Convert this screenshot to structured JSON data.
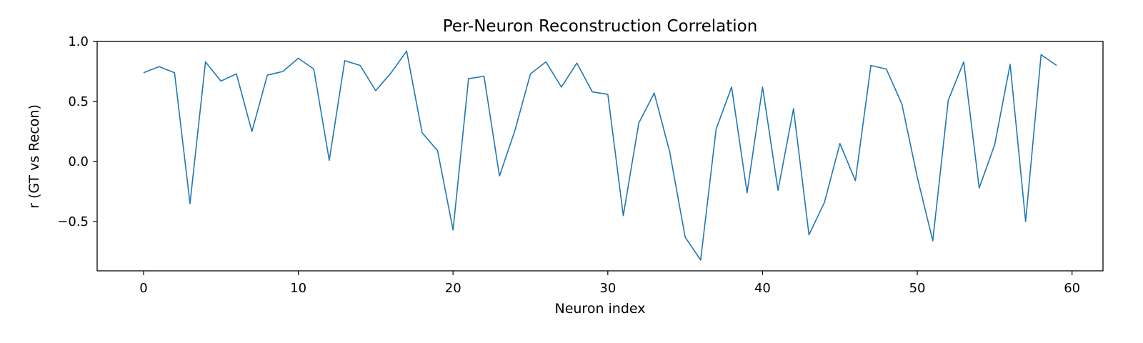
{
  "chart_data": {
    "type": "line",
    "title": "Per-Neuron Reconstruction Correlation",
    "xlabel": "Neuron index",
    "ylabel": "r (GT vs Recon)",
    "xlim": [
      -3,
      62
    ],
    "ylim": [
      -0.91,
      1.0
    ],
    "xticks": [
      0,
      10,
      20,
      30,
      40,
      50,
      60
    ],
    "xtick_labels": [
      "0",
      "10",
      "20",
      "30",
      "40",
      "50",
      "60"
    ],
    "yticks": [
      -0.5,
      0.0,
      0.5,
      1.0
    ],
    "ytick_labels": [
      "−0.5",
      "0.0",
      "0.5",
      "1.0"
    ],
    "grid": false,
    "line_color": "#1f77b4",
    "x": [
      0,
      1,
      2,
      3,
      4,
      5,
      6,
      7,
      8,
      9,
      10,
      11,
      12,
      13,
      14,
      15,
      16,
      17,
      18,
      19,
      20,
      21,
      22,
      23,
      24,
      25,
      26,
      27,
      28,
      29,
      30,
      31,
      32,
      33,
      34,
      35,
      36,
      37,
      38,
      39,
      40,
      41,
      42,
      43,
      44,
      45,
      46,
      47,
      48,
      49,
      50,
      51,
      52,
      53,
      54,
      55,
      56,
      57,
      58,
      59
    ],
    "y": [
      0.74,
      0.79,
      0.74,
      -0.35,
      0.83,
      0.67,
      0.73,
      0.25,
      0.72,
      0.75,
      0.86,
      0.77,
      0.01,
      0.84,
      0.8,
      0.59,
      0.74,
      0.92,
      0.24,
      0.09,
      -0.57,
      0.69,
      0.71,
      -0.12,
      0.26,
      0.73,
      0.83,
      0.62,
      0.82,
      0.58,
      0.56,
      -0.45,
      0.32,
      0.57,
      0.08,
      -0.63,
      -0.82,
      0.27,
      0.62,
      -0.26,
      0.62,
      -0.24,
      0.44,
      -0.61,
      -0.34,
      0.15,
      -0.16,
      0.8,
      0.77,
      0.48,
      -0.13,
      -0.66,
      0.51,
      0.83,
      -0.22,
      0.14,
      0.81,
      -0.5,
      0.89,
      0.8
    ]
  }
}
